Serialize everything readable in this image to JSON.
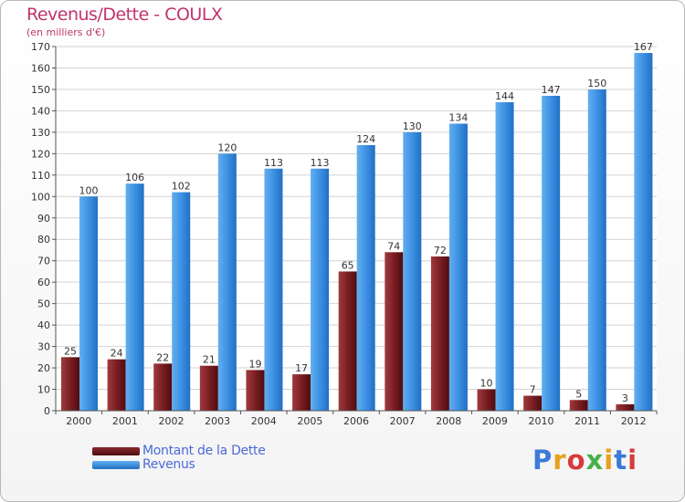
{
  "title": "Revenus/Dette - COULX",
  "subtitle": "(en milliers d'€)",
  "logo_text": "Proxiti",
  "colors": {
    "dette": "#7a1e22",
    "revenus": "#3a8ee0",
    "title": "#c0346c",
    "legend_text": "#4a6ad8"
  },
  "legend": {
    "dette_label": "Montant de la Dette",
    "revenus_label": "Revenus"
  },
  "chart_data": {
    "type": "bar",
    "title": "Revenus/Dette - COULX",
    "subtitle": "(en milliers d'€)",
    "categories": [
      "2000",
      "2001",
      "2002",
      "2003",
      "2004",
      "2005",
      "2006",
      "2007",
      "2008",
      "2009",
      "2010",
      "2011",
      "2012"
    ],
    "series": [
      {
        "name": "Montant de la Dette",
        "values": [
          25,
          24,
          22,
          21,
          19,
          17,
          65,
          74,
          72,
          10,
          7,
          5,
          3
        ]
      },
      {
        "name": "Revenus",
        "values": [
          100,
          106,
          102,
          120,
          113,
          113,
          124,
          130,
          134,
          144,
          147,
          150,
          167
        ]
      }
    ],
    "ylim": [
      0,
      170
    ],
    "yticks": [
      0,
      10,
      20,
      30,
      40,
      50,
      60,
      70,
      80,
      90,
      100,
      110,
      120,
      130,
      140,
      150,
      160,
      170
    ],
    "grid": true,
    "legend_position": "bottom-left"
  }
}
